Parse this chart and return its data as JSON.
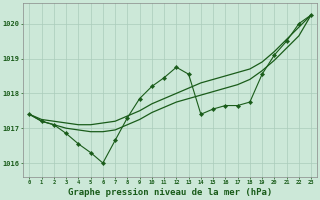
{
  "background_color": "#cce8d8",
  "plot_bg_color": "#cce8d8",
  "grid_color": "#aaccbb",
  "line_color": "#1a5c1a",
  "xlabel": "Graphe pression niveau de la mer (hPa)",
  "xlabel_fontsize": 6.5,
  "xlim": [
    -0.5,
    23.5
  ],
  "ylim": [
    1015.6,
    1020.6
  ],
  "yticks": [
    1016,
    1017,
    1018,
    1019,
    1020
  ],
  "xticks": [
    0,
    1,
    2,
    3,
    4,
    5,
    6,
    7,
    8,
    9,
    10,
    11,
    12,
    13,
    14,
    15,
    16,
    17,
    18,
    19,
    20,
    21,
    22,
    23
  ],
  "y_main": [
    1017.4,
    1017.2,
    1017.1,
    1016.85,
    1016.55,
    1016.3,
    1016.0,
    1016.65,
    1017.3,
    1017.85,
    1018.2,
    1018.45,
    1018.75,
    1018.55,
    1017.4,
    1017.55,
    1017.65,
    1017.65,
    1017.75,
    1018.55,
    1019.1,
    1019.5,
    1020.0,
    1020.25
  ],
  "y_upper": [
    1017.4,
    1017.25,
    1017.2,
    1017.15,
    1017.1,
    1017.1,
    1017.15,
    1017.2,
    1017.35,
    1017.5,
    1017.7,
    1017.85,
    1018.0,
    1018.15,
    1018.3,
    1018.4,
    1018.5,
    1018.6,
    1018.7,
    1018.9,
    1019.2,
    1019.55,
    1019.9,
    1020.25
  ],
  "y_lower": [
    1017.4,
    1017.2,
    1017.1,
    1017.0,
    1016.95,
    1016.9,
    1016.9,
    1016.95,
    1017.1,
    1017.25,
    1017.45,
    1017.6,
    1017.75,
    1017.85,
    1017.95,
    1018.05,
    1018.15,
    1018.25,
    1018.4,
    1018.65,
    1018.95,
    1019.3,
    1019.65,
    1020.25
  ]
}
